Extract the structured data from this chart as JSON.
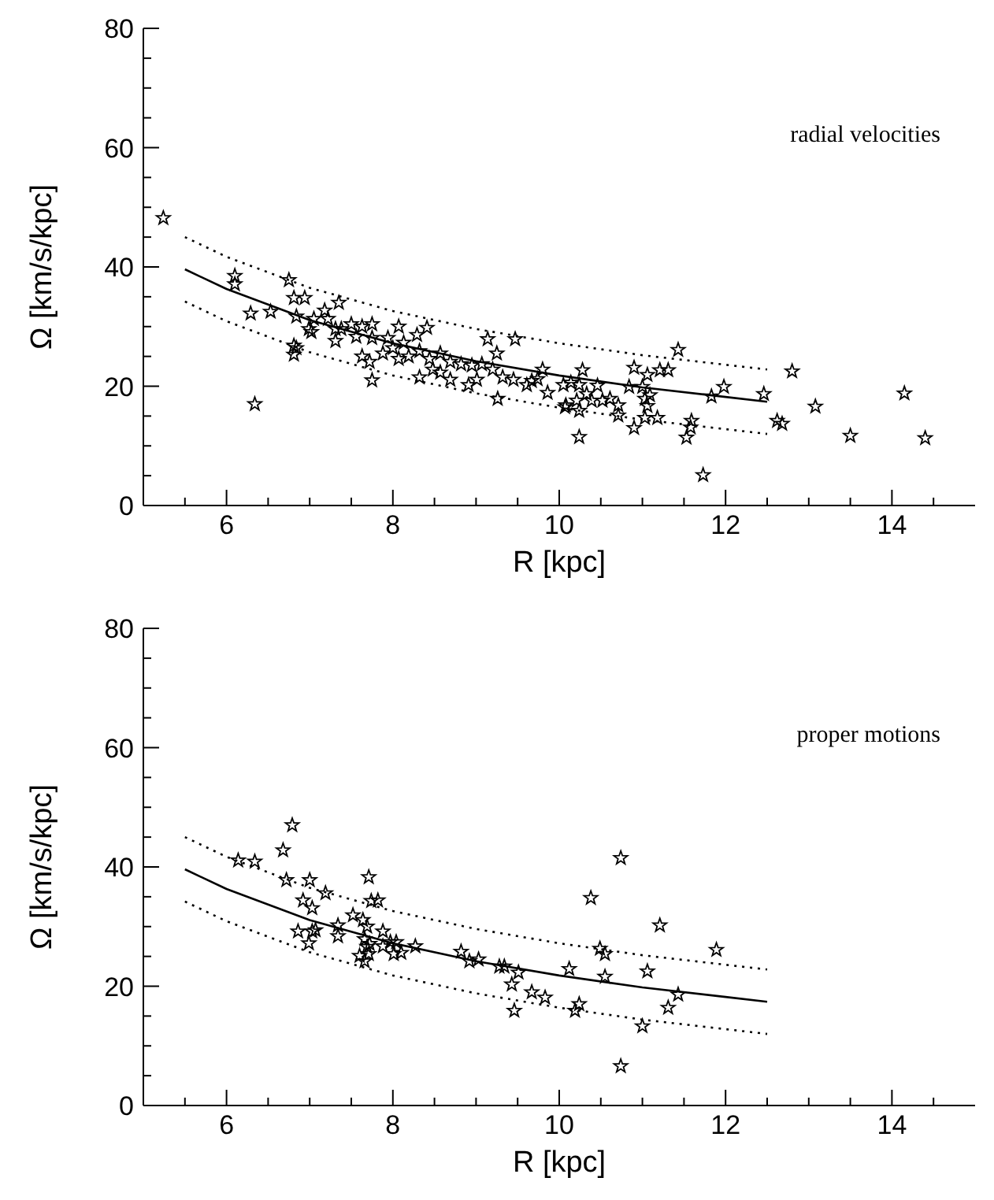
{
  "chart_data": [
    {
      "type": "scatter",
      "xlabel": "R [kpc]",
      "ylabel": "Ω [km/s/kpc]",
      "annotations": [
        "radial velocities"
      ],
      "grid": false,
      "xlim": [
        5,
        15
      ],
      "ylim": [
        0,
        80
      ],
      "xticks": [
        {
          "value": 5.5,
          "label": null
        },
        6,
        {
          "value": 6.5,
          "label": null
        },
        {
          "value": 7,
          "label": null
        },
        {
          "value": 7.5,
          "label": null
        },
        8,
        {
          "value": 8.5,
          "label": null
        },
        {
          "value": 9,
          "label": null
        },
        {
          "value": 9.5,
          "label": null
        },
        10,
        {
          "value": 10.5,
          "label": null
        },
        {
          "value": 11,
          "label": null
        },
        {
          "value": 11.5,
          "label": null
        },
        12,
        {
          "value": 12.5,
          "label": null
        },
        {
          "value": 13,
          "label": null
        },
        {
          "value": 13.5,
          "label": null
        },
        14,
        {
          "value": 14.5,
          "label": null
        }
      ],
      "yticks": [
        0,
        {
          "value": 5,
          "label": null
        },
        {
          "value": 10,
          "label": null
        },
        {
          "value": 15,
          "label": null
        },
        20,
        {
          "value": 25,
          "label": null
        },
        {
          "value": 30,
          "label": null
        },
        {
          "value": 35,
          "label": null
        },
        40,
        {
          "value": 45,
          "label": null
        },
        {
          "value": 50,
          "label": null
        },
        {
          "value": 55,
          "label": null
        },
        60,
        {
          "value": 65,
          "label": null
        },
        {
          "value": 70,
          "label": null
        },
        {
          "value": 75,
          "label": null
        },
        80
      ],
      "series": [
        {
          "type": "scatter",
          "marker": "star",
          "color": "#000000",
          "x": [
            5.24,
            6.1,
            6.1,
            6.29,
            6.34,
            6.53,
            6.75,
            6.81,
            6.94,
            6.84,
            6.81,
            6.84,
            6.81,
            7.05,
            6.99,
            7.02,
            7.18,
            7.22,
            7.35,
            7.31,
            7.38,
            7.31,
            7.5,
            7.63,
            7.75,
            7.63,
            7.72,
            7.75,
            7.56,
            7.94,
            8.07,
            8.29,
            8.41,
            8.0,
            8.13,
            8.19,
            8.32,
            8.44,
            8.57,
            8.69,
            8.82,
            8.95,
            9.07,
            9.2,
            8.32,
            8.69,
            8.91,
            9.01,
            9.14,
            9.25,
            9.47,
            9.26,
            9.32,
            9.45,
            9.61,
            9.67,
            9.8,
            9.86,
            10.05,
            10.07,
            7.88,
            8.07,
            7.75,
            8.48,
            8.57,
            9.74,
            10.14,
            10.24,
            10.28,
            10.21,
            10.24,
            10.24,
            10.08,
            10.33,
            10.46,
            10.39,
            10.52,
            10.61,
            10.71,
            10.71,
            10.84,
            10.9,
            11.0,
            11.06,
            11.03,
            11.09,
            11.06,
            11.03,
            10.9,
            11.18,
            11.21,
            11.31,
            11.43,
            11.59,
            11.58,
            11.53,
            11.73,
            11.83,
            11.98,
            12.46,
            12.62,
            12.68,
            12.8,
            13.08,
            13.5,
            14.15,
            14.4
          ],
          "values": [
            48.2,
            38.5,
            37.1,
            32.2,
            17.0,
            32.5,
            37.8,
            34.8,
            34.8,
            31.7,
            26.8,
            26.4,
            25.3,
            31.3,
            29.6,
            29.1,
            32.7,
            31.3,
            34.0,
            29.6,
            29.6,
            27.6,
            30.4,
            30.0,
            30.4,
            25.0,
            24.1,
            21.0,
            28.3,
            28.1,
            30.0,
            28.6,
            29.8,
            26.4,
            27.3,
            25.0,
            25.9,
            24.6,
            25.5,
            24.1,
            23.7,
            23.5,
            23.7,
            22.8,
            21.5,
            21.1,
            20.2,
            21.1,
            27.9,
            25.5,
            27.9,
            17.9,
            21.5,
            21.1,
            20.2,
            20.9,
            22.8,
            18.9,
            20.2,
            16.5,
            25.5,
            24.6,
            28.1,
            22.8,
            22.3,
            21.2,
            20.6,
            20.2,
            22.7,
            17.6,
            15.9,
            11.5,
            16.8,
            18.7,
            20.1,
            17.6,
            17.6,
            17.9,
            16.8,
            15.1,
            19.9,
            23.1,
            19.9,
            21.9,
            17.9,
            18.5,
            16.7,
            14.7,
            13.0,
            14.7,
            22.7,
            22.7,
            26.1,
            14.2,
            13.1,
            11.4,
            5.1,
            18.3,
            19.9,
            18.7,
            14.2,
            13.7,
            22.5,
            16.6,
            11.7,
            18.8,
            11.3
          ]
        },
        {
          "type": "line",
          "line_style": "solid",
          "marker": "none",
          "color": "#000000",
          "x": [
            5.5,
            6,
            7,
            8,
            9,
            10,
            11,
            12,
            12.5
          ],
          "values": [
            39.6,
            36.3,
            31.1,
            27.2,
            24.2,
            21.8,
            19.8,
            18.2,
            17.4
          ]
        },
        {
          "type": "line",
          "line_style": "dotted",
          "marker": "none",
          "color": "#000000",
          "x": [
            5.5,
            6,
            7,
            8,
            9,
            10,
            11,
            12,
            12.5
          ],
          "values": [
            45.0,
            41.7,
            36.5,
            32.6,
            29.6,
            27.2,
            25.2,
            23.6,
            22.8
          ]
        },
        {
          "type": "line",
          "line_style": "dotted",
          "marker": "none",
          "color": "#000000",
          "x": [
            5.5,
            6,
            7,
            8,
            9,
            10,
            11,
            12,
            12.5
          ],
          "values": [
            34.2,
            30.9,
            25.7,
            21.8,
            18.8,
            16.4,
            14.4,
            12.8,
            12.0
          ]
        }
      ]
    },
    {
      "type": "scatter",
      "xlabel": "R [kpc]",
      "ylabel": "Ω [km/s/kpc]",
      "annotations": [
        "proper motions"
      ],
      "grid": false,
      "xlim": [
        5,
        15
      ],
      "ylim": [
        0,
        80
      ],
      "xticks": [
        {
          "value": 5.5,
          "label": null
        },
        6,
        {
          "value": 6.5,
          "label": null
        },
        {
          "value": 7,
          "label": null
        },
        {
          "value": 7.5,
          "label": null
        },
        8,
        {
          "value": 8.5,
          "label": null
        },
        {
          "value": 9,
          "label": null
        },
        {
          "value": 9.5,
          "label": null
        },
        10,
        {
          "value": 10.5,
          "label": null
        },
        {
          "value": 11,
          "label": null
        },
        {
          "value": 11.5,
          "label": null
        },
        12,
        {
          "value": 12.5,
          "label": null
        },
        {
          "value": 13,
          "label": null
        },
        {
          "value": 13.5,
          "label": null
        },
        14,
        {
          "value": 14.5,
          "label": null
        }
      ],
      "yticks": [
        0,
        {
          "value": 5,
          "label": null
        },
        {
          "value": 10,
          "label": null
        },
        {
          "value": 15,
          "label": null
        },
        20,
        {
          "value": 25,
          "label": null
        },
        {
          "value": 30,
          "label": null
        },
        {
          "value": 35,
          "label": null
        },
        40,
        {
          "value": 45,
          "label": null
        },
        {
          "value": 50,
          "label": null
        },
        {
          "value": 55,
          "label": null
        },
        60,
        {
          "value": 65,
          "label": null
        },
        {
          "value": 70,
          "label": null
        },
        {
          "value": 75,
          "label": null
        },
        80
      ],
      "series": [
        {
          "type": "scatter",
          "marker": "star",
          "color": "#000000",
          "x": [
            6.14,
            6.34,
            6.68,
            6.79,
            6.72,
            7.0,
            6.92,
            7.03,
            7.19,
            6.86,
            7.03,
            7.07,
            6.99,
            7.34,
            7.34,
            7.52,
            7.64,
            7.69,
            7.71,
            7.74,
            7.82,
            7.66,
            7.72,
            7.6,
            7.66,
            7.71,
            7.69,
            7.88,
            7.88,
            7.97,
            8.04,
            8.01,
            8.1,
            8.27,
            8.82,
            8.92,
            9.03,
            9.28,
            9.34,
            9.51,
            9.43,
            9.67,
            9.83,
            9.46,
            10.12,
            10.19,
            10.24,
            10.38,
            10.49,
            10.55,
            10.55,
            10.74,
            10.74,
            11.0,
            11.06,
            11.21,
            11.31,
            11.43,
            11.89
          ],
          "values": [
            41.1,
            40.9,
            42.8,
            47.0,
            37.8,
            37.8,
            34.4,
            33.1,
            35.6,
            29.2,
            29.2,
            29.4,
            27.2,
            30.2,
            28.4,
            31.9,
            31.1,
            30.0,
            38.3,
            34.3,
            34.4,
            27.9,
            27.1,
            25.1,
            24.2,
            25.4,
            26.6,
            29.2,
            26.7,
            27.4,
            27.4,
            25.4,
            25.6,
            26.7,
            25.8,
            24.2,
            24.5,
            23.3,
            23.3,
            22.3,
            20.3,
            19.0,
            18.1,
            15.9,
            22.9,
            15.9,
            17.0,
            34.8,
            26.3,
            25.4,
            21.6,
            41.5,
            6.6,
            13.3,
            22.5,
            30.2,
            16.4,
            18.6,
            26.1
          ]
        },
        {
          "type": "line",
          "line_style": "solid",
          "marker": "none",
          "color": "#000000",
          "x": [
            5.5,
            6,
            7,
            8,
            9,
            10,
            11,
            12,
            12.5
          ],
          "values": [
            39.6,
            36.3,
            31.1,
            27.2,
            24.2,
            21.8,
            19.8,
            18.2,
            17.4
          ]
        },
        {
          "type": "line",
          "line_style": "dotted",
          "marker": "none",
          "color": "#000000",
          "x": [
            5.5,
            6,
            7,
            8,
            9,
            10,
            11,
            12,
            12.5
          ],
          "values": [
            45.0,
            41.7,
            36.5,
            32.6,
            29.6,
            27.2,
            25.2,
            23.6,
            22.8
          ]
        },
        {
          "type": "line",
          "line_style": "dotted",
          "marker": "none",
          "color": "#000000",
          "x": [
            5.5,
            6,
            7,
            8,
            9,
            10,
            11,
            12,
            12.5
          ],
          "values": [
            34.2,
            30.9,
            25.7,
            21.8,
            18.8,
            16.4,
            14.4,
            12.8,
            12.0
          ]
        }
      ]
    }
  ]
}
